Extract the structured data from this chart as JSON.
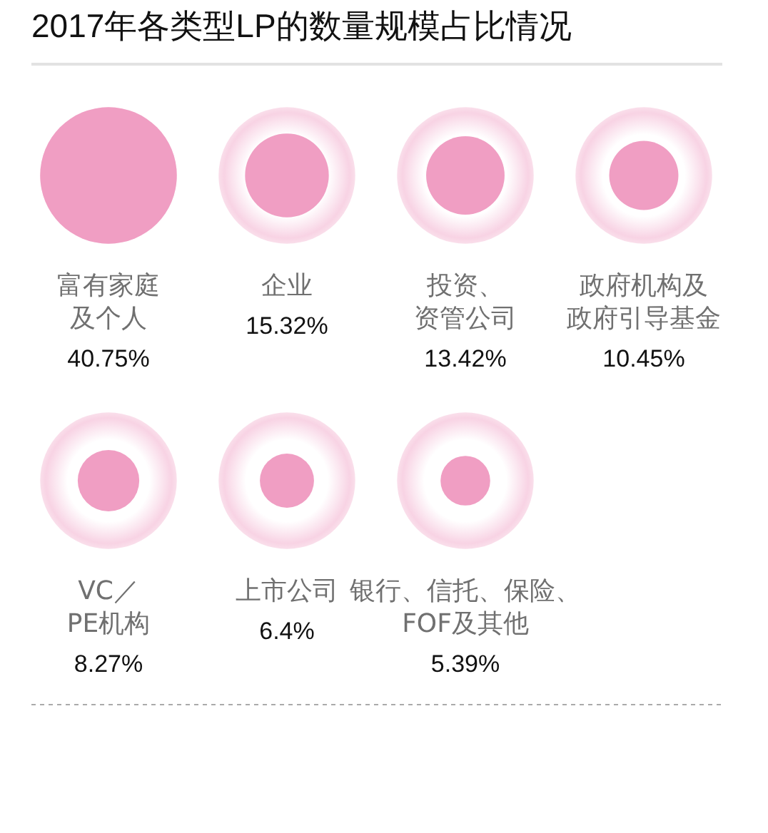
{
  "chart_data": {
    "type": "other",
    "title": "2017年各类型LP的数量规模占比情况",
    "categories": [
      "富有家庭及个人",
      "企业",
      "投资、资管公司",
      "政府机构及政府引导基金",
      "VC／PE机构",
      "上市公司",
      "银行、信托、保险、FOF及其他"
    ],
    "values": [
      40.75,
      15.32,
      13.42,
      10.45,
      8.27,
      6.4,
      5.39
    ],
    "value_labels": [
      "40.75%",
      "15.32%",
      "13.42%",
      "10.45%",
      "8.27%",
      "6.4%",
      "5.39%"
    ],
    "colors": [
      "#f09ec3",
      "#f09ec3",
      "#f09ec3",
      "#f09ec3",
      "#f09ec3",
      "#f09ec3",
      "#f09ec3"
    ]
  }
}
